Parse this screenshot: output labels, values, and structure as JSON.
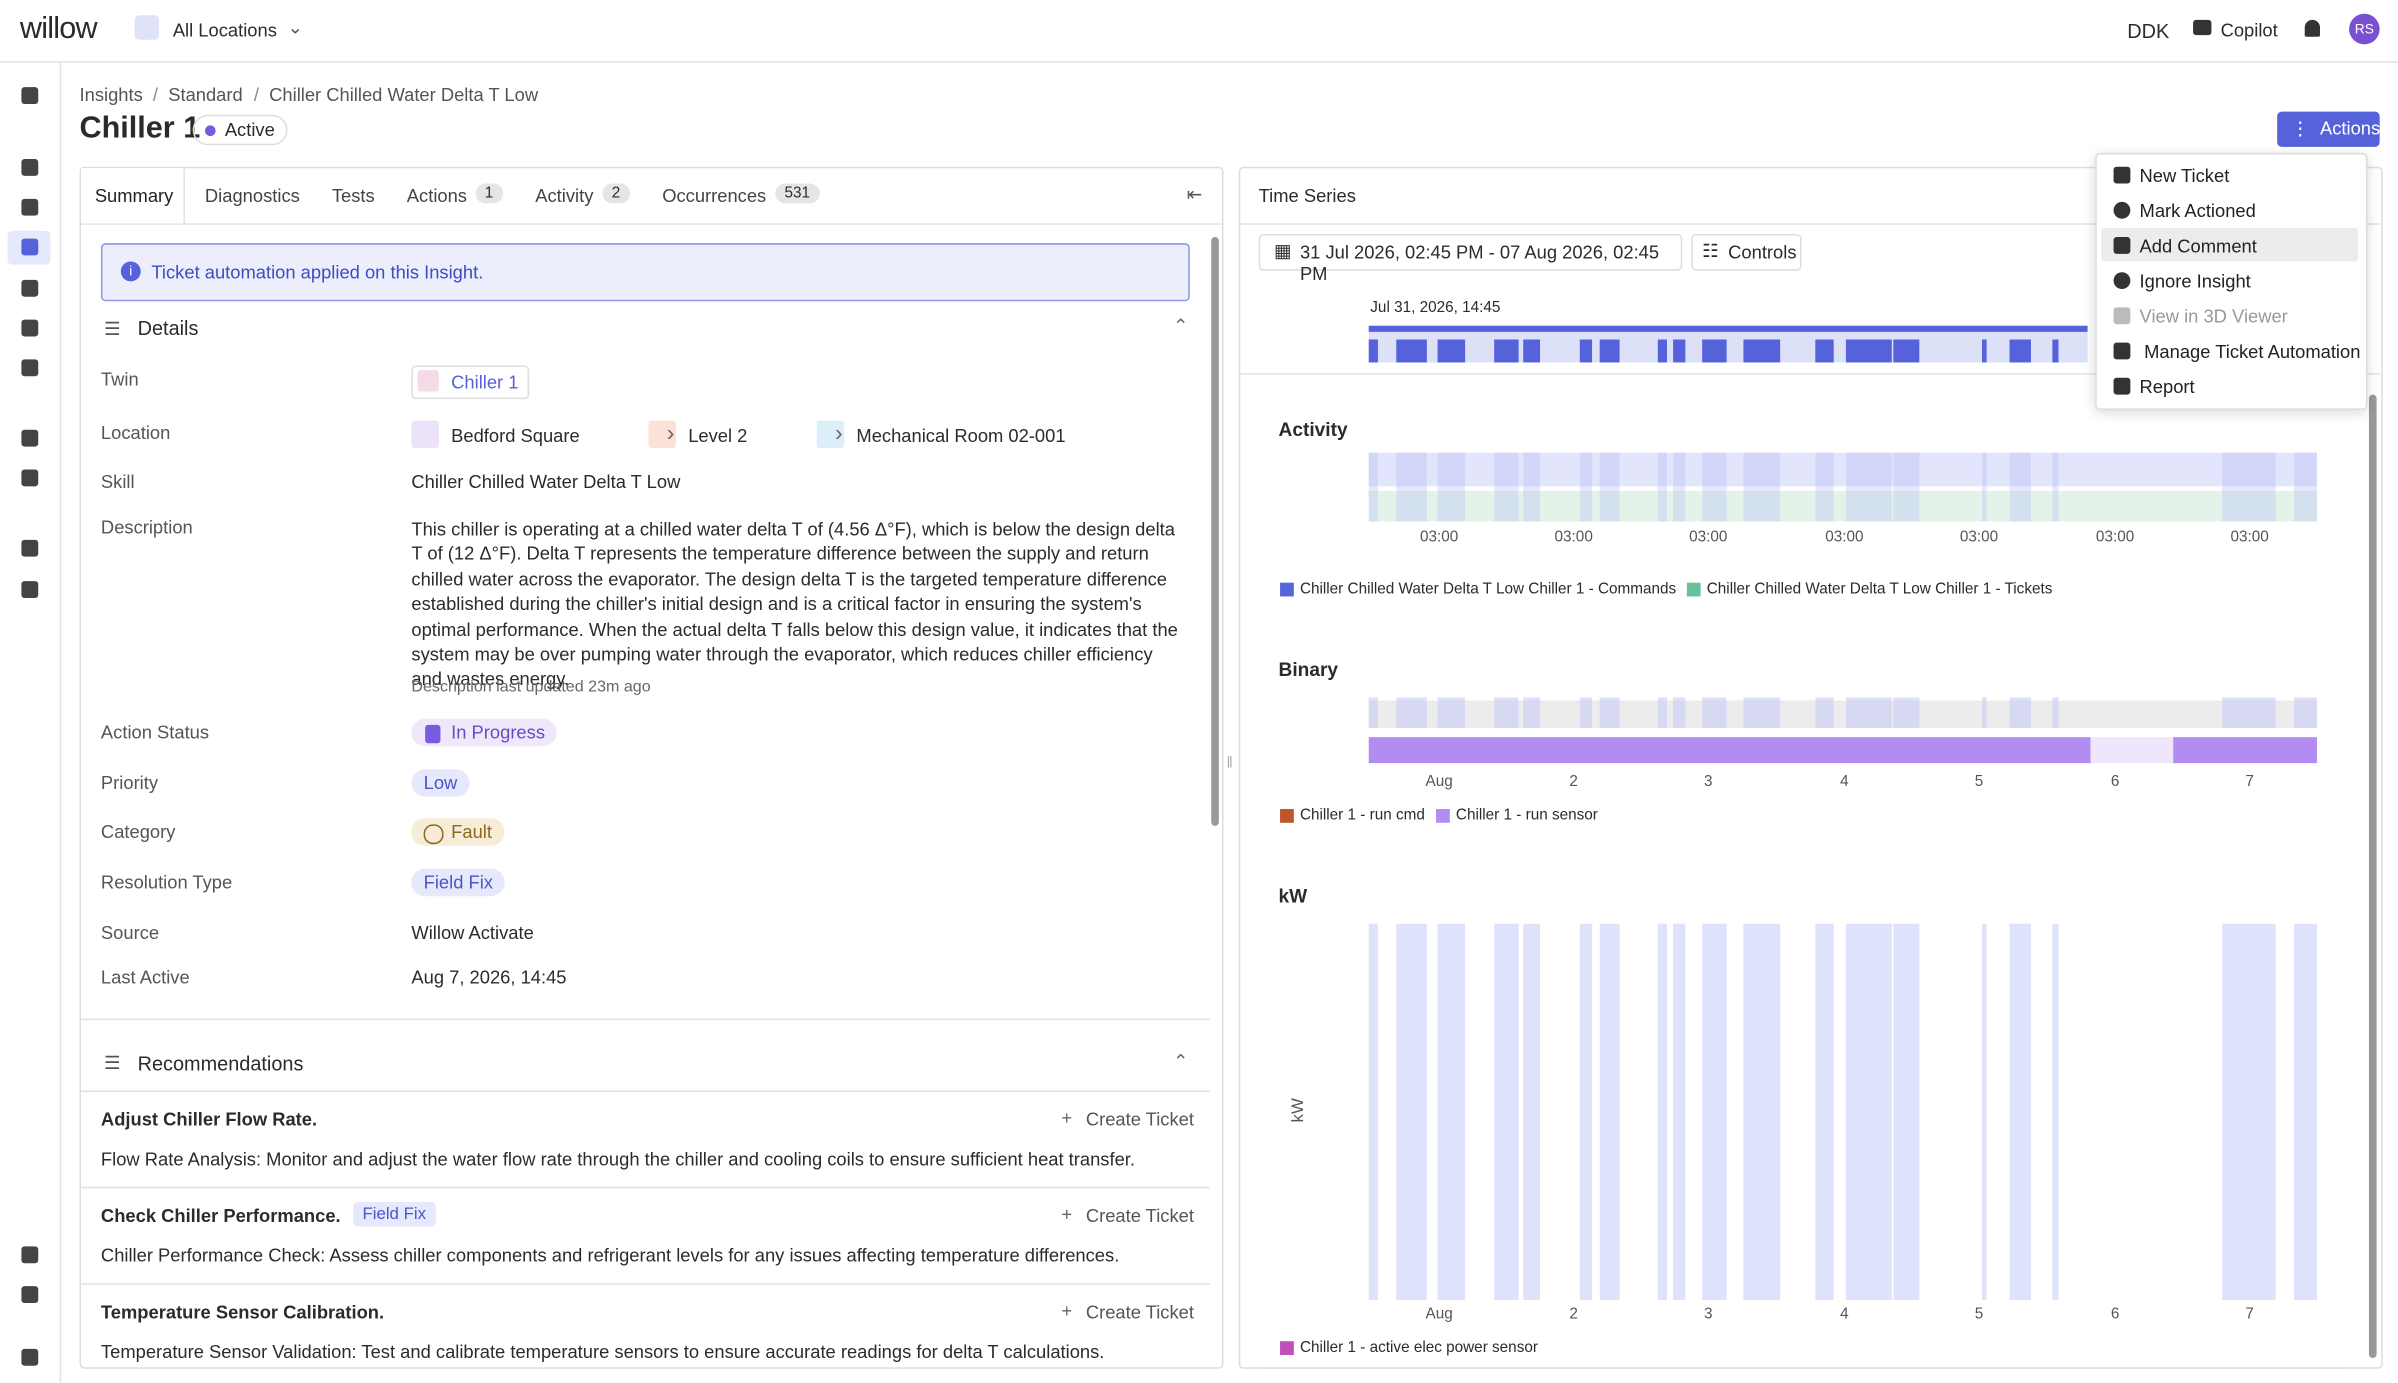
{
  "topbar": {
    "logo": "willow",
    "location": "All Locations",
    "site": "DDK",
    "copilot": "Copilot",
    "avatar": "RS"
  },
  "breadcrumb": [
    "Insights",
    "Standard",
    "Chiller Chilled Water Delta T Low"
  ],
  "header": {
    "title": "Chiller 1",
    "status": "Active",
    "actions": "Actions"
  },
  "tabs": [
    {
      "label": "Summary"
    },
    {
      "label": "Diagnostics"
    },
    {
      "label": "Tests"
    },
    {
      "label": "Actions",
      "count": 1
    },
    {
      "label": "Activity",
      "count": 2
    },
    {
      "label": "Occurrences",
      "count": 531
    }
  ],
  "banner": "Ticket automation applied on this Insight.",
  "details": {
    "title": "Details",
    "twin_label": "Twin",
    "twin": "Chiller 1",
    "location_label": "Location",
    "location": [
      "Bedford Square",
      "Level 2",
      "Mechanical Room 02-001"
    ],
    "skill_label": "Skill",
    "skill": "Chiller Chilled Water Delta T Low",
    "description_label": "Description",
    "description": "This chiller is operating at a chilled water delta T of (4.56 Δ°F), which is below the design delta T of (12 Δ°F). Delta T represents the temperature difference between the supply and return chilled water across the evaporator. The design delta T is the targeted temperature difference established during the chiller's initial design and is a critical factor in ensuring the system's optimal performance. When the actual delta T falls below this design value, it indicates that the system may be over pumping water through the evaporator, which reduces chiller efficiency and wastes energy.",
    "description_updated": "Description last updated 23m ago",
    "action_status_label": "Action Status",
    "action_status": "In Progress",
    "priority_label": "Priority",
    "priority": "Low",
    "category_label": "Category",
    "category": "Fault",
    "resolution_label": "Resolution Type",
    "resolution": "Field Fix",
    "source_label": "Source",
    "source": "Willow Activate",
    "last_active_label": "Last Active",
    "last_active": "Aug 7, 2026, 14:45"
  },
  "recommendations": {
    "title": "Recommendations",
    "items": [
      {
        "title": "Adjust Chiller Flow Rate.",
        "action": "Create Ticket",
        "text": "Flow Rate Analysis: Monitor and adjust the water flow rate through the chiller and cooling coils to ensure sufficient heat transfer."
      },
      {
        "title": "Check Chiller Performance.",
        "tag": "Field Fix",
        "action": "Create Ticket",
        "text": "Chiller Performance Check: Assess chiller components and refrigerant levels for any issues affecting temperature differences."
      },
      {
        "title": "Temperature Sensor Calibration.",
        "action": "Create Ticket",
        "text": "Temperature Sensor Validation: Test and calibrate temperature sensors to ensure accurate readings for delta T calculations."
      }
    ]
  },
  "time_series": {
    "title": "Time Series",
    "date_range": "31 Jul 2026, 02:45 PM - 07 Aug 2026, 02:45 PM",
    "controls": "Controls",
    "range_start": "Jul 31, 2026, 14:45",
    "panels": [
      {
        "title": "Activity",
        "x_labels": [
          "03:00",
          "03:00",
          "03:00",
          "03:00",
          "03:00",
          "03:00",
          "03:00"
        ],
        "legend": [
          {
            "name": "Chiller Chilled Water Delta T Low Chiller 1 - Commands",
            "color": "#5566dd"
          },
          {
            "name": "Chiller Chilled Water Delta T Low Chiller 1 - Tickets",
            "color": "#66c299"
          }
        ]
      },
      {
        "title": "Binary",
        "x_labels": [
          "Aug",
          "2",
          "3",
          "4",
          "5",
          "6",
          "7"
        ],
        "legend": [
          {
            "name": "Chiller 1 - run cmd",
            "color": "#c0542a"
          },
          {
            "name": "Chiller 1 - run sensor",
            "color": "#b28cf0"
          }
        ]
      },
      {
        "title": "kW",
        "y_label": "kW",
        "x_labels": [
          "Aug",
          "2",
          "3",
          "4",
          "5",
          "6",
          "7"
        ],
        "legend": [
          {
            "name": "Chiller 1 - active elec power sensor",
            "color": "#c04fb8"
          }
        ]
      }
    ]
  },
  "menu": [
    "New Ticket",
    "Mark Actioned",
    "Add Comment",
    "Ignore Insight",
    "View in 3D Viewer",
    "Manage Ticket Automation",
    "Report"
  ]
}
